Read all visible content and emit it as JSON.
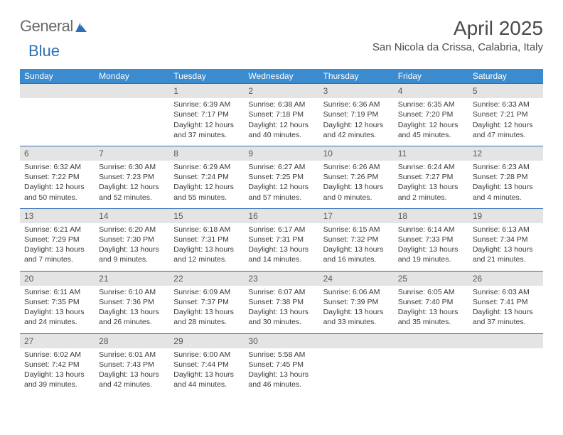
{
  "brand": {
    "part1": "General",
    "part2": "Blue"
  },
  "title": "April 2025",
  "location": "San Nicola da Crissa, Calabria, Italy",
  "daynames": [
    "Sunday",
    "Monday",
    "Tuesday",
    "Wednesday",
    "Thursday",
    "Friday",
    "Saturday"
  ],
  "colors": {
    "header_bg": "#3b8bce",
    "header_text": "#ffffff",
    "daynum_bg": "#e4e4e4",
    "daynum_border": "#2d6fb5",
    "accent": "#2d6fb5",
    "text": "#3a3a3a"
  },
  "weeks": [
    [
      {
        "n": "",
        "empty": true
      },
      {
        "n": "",
        "empty": true
      },
      {
        "n": "1",
        "sr": "Sunrise: 6:39 AM",
        "ss": "Sunset: 7:17 PM",
        "dl": "Daylight: 12 hours and 37 minutes."
      },
      {
        "n": "2",
        "sr": "Sunrise: 6:38 AM",
        "ss": "Sunset: 7:18 PM",
        "dl": "Daylight: 12 hours and 40 minutes."
      },
      {
        "n": "3",
        "sr": "Sunrise: 6:36 AM",
        "ss": "Sunset: 7:19 PM",
        "dl": "Daylight: 12 hours and 42 minutes."
      },
      {
        "n": "4",
        "sr": "Sunrise: 6:35 AM",
        "ss": "Sunset: 7:20 PM",
        "dl": "Daylight: 12 hours and 45 minutes."
      },
      {
        "n": "5",
        "sr": "Sunrise: 6:33 AM",
        "ss": "Sunset: 7:21 PM",
        "dl": "Daylight: 12 hours and 47 minutes."
      }
    ],
    [
      {
        "n": "6",
        "sr": "Sunrise: 6:32 AM",
        "ss": "Sunset: 7:22 PM",
        "dl": "Daylight: 12 hours and 50 minutes."
      },
      {
        "n": "7",
        "sr": "Sunrise: 6:30 AM",
        "ss": "Sunset: 7:23 PM",
        "dl": "Daylight: 12 hours and 52 minutes."
      },
      {
        "n": "8",
        "sr": "Sunrise: 6:29 AM",
        "ss": "Sunset: 7:24 PM",
        "dl": "Daylight: 12 hours and 55 minutes."
      },
      {
        "n": "9",
        "sr": "Sunrise: 6:27 AM",
        "ss": "Sunset: 7:25 PM",
        "dl": "Daylight: 12 hours and 57 minutes."
      },
      {
        "n": "10",
        "sr": "Sunrise: 6:26 AM",
        "ss": "Sunset: 7:26 PM",
        "dl": "Daylight: 13 hours and 0 minutes."
      },
      {
        "n": "11",
        "sr": "Sunrise: 6:24 AM",
        "ss": "Sunset: 7:27 PM",
        "dl": "Daylight: 13 hours and 2 minutes."
      },
      {
        "n": "12",
        "sr": "Sunrise: 6:23 AM",
        "ss": "Sunset: 7:28 PM",
        "dl": "Daylight: 13 hours and 4 minutes."
      }
    ],
    [
      {
        "n": "13",
        "sr": "Sunrise: 6:21 AM",
        "ss": "Sunset: 7:29 PM",
        "dl": "Daylight: 13 hours and 7 minutes."
      },
      {
        "n": "14",
        "sr": "Sunrise: 6:20 AM",
        "ss": "Sunset: 7:30 PM",
        "dl": "Daylight: 13 hours and 9 minutes."
      },
      {
        "n": "15",
        "sr": "Sunrise: 6:18 AM",
        "ss": "Sunset: 7:31 PM",
        "dl": "Daylight: 13 hours and 12 minutes."
      },
      {
        "n": "16",
        "sr": "Sunrise: 6:17 AM",
        "ss": "Sunset: 7:31 PM",
        "dl": "Daylight: 13 hours and 14 minutes."
      },
      {
        "n": "17",
        "sr": "Sunrise: 6:15 AM",
        "ss": "Sunset: 7:32 PM",
        "dl": "Daylight: 13 hours and 16 minutes."
      },
      {
        "n": "18",
        "sr": "Sunrise: 6:14 AM",
        "ss": "Sunset: 7:33 PM",
        "dl": "Daylight: 13 hours and 19 minutes."
      },
      {
        "n": "19",
        "sr": "Sunrise: 6:13 AM",
        "ss": "Sunset: 7:34 PM",
        "dl": "Daylight: 13 hours and 21 minutes."
      }
    ],
    [
      {
        "n": "20",
        "sr": "Sunrise: 6:11 AM",
        "ss": "Sunset: 7:35 PM",
        "dl": "Daylight: 13 hours and 24 minutes."
      },
      {
        "n": "21",
        "sr": "Sunrise: 6:10 AM",
        "ss": "Sunset: 7:36 PM",
        "dl": "Daylight: 13 hours and 26 minutes."
      },
      {
        "n": "22",
        "sr": "Sunrise: 6:09 AM",
        "ss": "Sunset: 7:37 PM",
        "dl": "Daylight: 13 hours and 28 minutes."
      },
      {
        "n": "23",
        "sr": "Sunrise: 6:07 AM",
        "ss": "Sunset: 7:38 PM",
        "dl": "Daylight: 13 hours and 30 minutes."
      },
      {
        "n": "24",
        "sr": "Sunrise: 6:06 AM",
        "ss": "Sunset: 7:39 PM",
        "dl": "Daylight: 13 hours and 33 minutes."
      },
      {
        "n": "25",
        "sr": "Sunrise: 6:05 AM",
        "ss": "Sunset: 7:40 PM",
        "dl": "Daylight: 13 hours and 35 minutes."
      },
      {
        "n": "26",
        "sr": "Sunrise: 6:03 AM",
        "ss": "Sunset: 7:41 PM",
        "dl": "Daylight: 13 hours and 37 minutes."
      }
    ],
    [
      {
        "n": "27",
        "sr": "Sunrise: 6:02 AM",
        "ss": "Sunset: 7:42 PM",
        "dl": "Daylight: 13 hours and 39 minutes."
      },
      {
        "n": "28",
        "sr": "Sunrise: 6:01 AM",
        "ss": "Sunset: 7:43 PM",
        "dl": "Daylight: 13 hours and 42 minutes."
      },
      {
        "n": "29",
        "sr": "Sunrise: 6:00 AM",
        "ss": "Sunset: 7:44 PM",
        "dl": "Daylight: 13 hours and 44 minutes."
      },
      {
        "n": "30",
        "sr": "Sunrise: 5:58 AM",
        "ss": "Sunset: 7:45 PM",
        "dl": "Daylight: 13 hours and 46 minutes."
      },
      {
        "n": "",
        "empty": true
      },
      {
        "n": "",
        "empty": true
      },
      {
        "n": "",
        "empty": true
      }
    ]
  ]
}
